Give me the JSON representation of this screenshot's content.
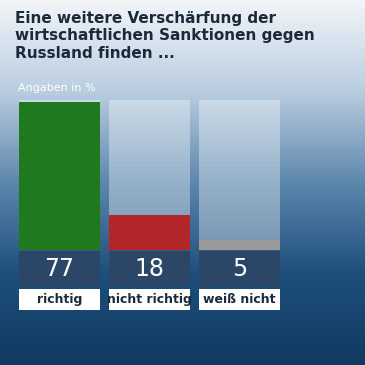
{
  "chart_data": {
    "type": "bar",
    "title": "Eine weitere Verschärfung der wirtschaftlichen Sanktionen gegen Russland finden ...",
    "subtitle": "Angaben in %",
    "categories": [
      "richtig",
      "nicht richtig",
      "weiß nicht"
    ],
    "values": [
      77,
      18,
      5
    ],
    "colors": [
      "#1f7a1f",
      "#b3262a",
      "#9a9a9a"
    ],
    "ylim": [
      0,
      78
    ],
    "data_labels": true,
    "tick_labels": false,
    "grid": false
  }
}
